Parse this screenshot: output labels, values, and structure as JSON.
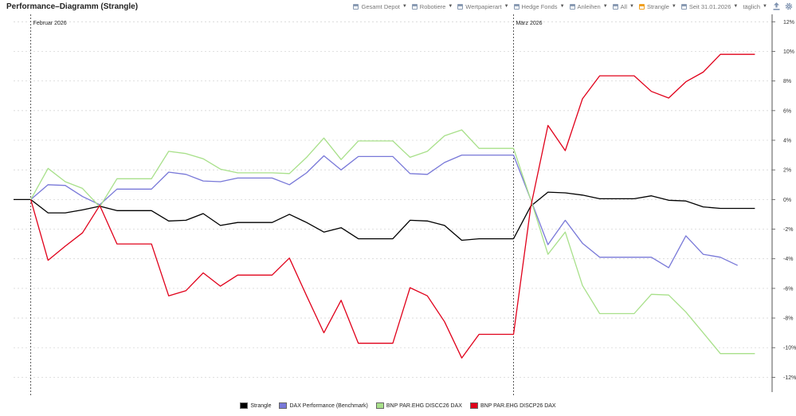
{
  "header": {
    "title": "Performance–Diagramm (Strangle)"
  },
  "toolbar": {
    "items": [
      {
        "label": "Gesamt Depot",
        "icon": "calendar-icon"
      },
      {
        "label": "Robotiere",
        "icon": "calendar-icon"
      },
      {
        "label": "Wertpapierart",
        "icon": "calendar-icon"
      },
      {
        "label": "Hedge Fonds",
        "icon": "calendar-icon"
      },
      {
        "label": "Anleihen",
        "icon": "calendar-icon"
      },
      {
        "label": "All",
        "icon": "calendar-icon"
      },
      {
        "label": "Strangle",
        "icon": "calendar-icon",
        "accent": "#f0a020"
      },
      {
        "label": "Seit 31.01.2026",
        "icon": "calendar-icon"
      }
    ],
    "interval": "täglich",
    "export_icon": "export-icon",
    "settings_icon": "gear-icon"
  },
  "chart_data": {
    "type": "line",
    "title": "Performance–Diagramm (Strangle)",
    "xlabel": "",
    "ylabel": "",
    "ylim": [
      -13,
      12.5
    ],
    "y_ticks": [
      12,
      10,
      8,
      6,
      4,
      2,
      0,
      -2,
      -4,
      -6,
      -8,
      -10,
      -12
    ],
    "y_tick_format": "%",
    "grid": true,
    "y_axis_position": "right",
    "legend_position": "bottom-center",
    "x_range": [
      -1,
      43
    ],
    "month_markers": [
      {
        "x": 0,
        "label": "Februar 2026"
      },
      {
        "x": 28,
        "label": "März 2026"
      }
    ],
    "x": [
      -1,
      0,
      1,
      2,
      3,
      4,
      5,
      6,
      7,
      8,
      9,
      10,
      11,
      12,
      13,
      14,
      15,
      16,
      17,
      18,
      19,
      20,
      21,
      22,
      23,
      24,
      25,
      26,
      27,
      28,
      29,
      30,
      31,
      32,
      33,
      34,
      35,
      36,
      37,
      38,
      39,
      40,
      41,
      42
    ],
    "series": [
      {
        "name": "Strangle",
        "color": "#000000",
        "values": [
          0,
          0,
          -0.9,
          -0.9,
          -0.7,
          -0.45,
          -0.75,
          -0.75,
          -0.75,
          -1.45,
          -1.4,
          -0.95,
          -1.75,
          -1.55,
          -1.55,
          -1.55,
          -1.0,
          -1.55,
          -2.2,
          -1.9,
          -2.65,
          -2.65,
          -2.65,
          -1.4,
          -1.45,
          -1.75,
          -2.75,
          -2.65,
          -2.65,
          -2.65,
          -0.45,
          0.5,
          0.45,
          0.3,
          0.05,
          0.05,
          0.05,
          0.25,
          -0.05,
          -0.1,
          -0.5,
          -0.6,
          -0.6,
          -0.6
        ]
      },
      {
        "name": "DAX Performance (Benchmark)",
        "color": "#7878d8",
        "values": [
          null,
          0,
          1.0,
          0.95,
          0.2,
          -0.35,
          0.7,
          0.7,
          0.7,
          1.85,
          1.7,
          1.25,
          1.2,
          1.45,
          1.45,
          1.45,
          1.0,
          1.8,
          2.95,
          2.0,
          2.9,
          2.9,
          2.9,
          1.75,
          1.7,
          2.5,
          3.0,
          3.0,
          3.0,
          3.0,
          0,
          -3.05,
          -1.4,
          -2.95,
          -3.9,
          -3.9,
          -3.9,
          -3.9,
          -4.6,
          -2.45,
          -3.7,
          -3.9,
          -4.45,
          null
        ]
      },
      {
        "name": "BNP PAR.EHG DISCC26 DAX",
        "color": "#a8e08a",
        "values": [
          null,
          0,
          2.1,
          1.2,
          0.75,
          -0.5,
          1.4,
          1.4,
          1.4,
          3.25,
          3.1,
          2.75,
          2.05,
          1.8,
          1.8,
          1.8,
          1.75,
          2.85,
          4.15,
          2.7,
          3.95,
          3.95,
          3.95,
          2.85,
          3.25,
          4.3,
          4.7,
          3.45,
          3.45,
          3.45,
          0,
          -3.7,
          -2.2,
          -5.8,
          -7.7,
          -7.7,
          -7.7,
          -6.4,
          -6.45,
          -7.6,
          -9.0,
          -10.4,
          -10.4,
          -10.4
        ]
      },
      {
        "name": "BNP PAR.EHG DISCP26 DAX",
        "color": "#e0001a",
        "values": [
          null,
          0,
          -4.1,
          -3.15,
          -2.25,
          -0.4,
          -3.0,
          -3.0,
          -3.0,
          -6.5,
          -6.15,
          -4.95,
          -5.85,
          -5.1,
          -5.1,
          -5.1,
          -3.95,
          -6.5,
          -9.0,
          -6.8,
          -9.7,
          -9.7,
          -9.7,
          -5.95,
          -6.5,
          -8.25,
          -10.7,
          -9.1,
          -9.1,
          -9.1,
          -0.5,
          5.0,
          3.3,
          6.8,
          8.35,
          8.35,
          8.35,
          7.3,
          6.85,
          7.95,
          8.6,
          9.8,
          9.8,
          9.8
        ]
      }
    ]
  }
}
